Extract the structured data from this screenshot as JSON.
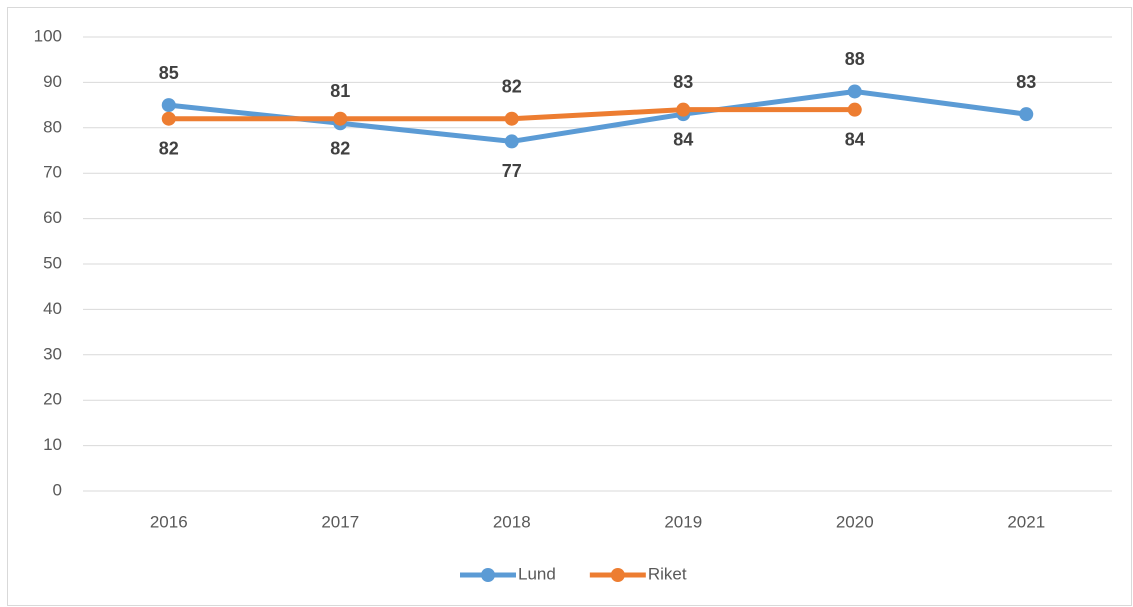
{
  "chart_data": {
    "type": "line",
    "categories": [
      "2016",
      "2017",
      "2018",
      "2019",
      "2020",
      "2021"
    ],
    "series": [
      {
        "name": "Lund",
        "color": "#5b9bd5",
        "values": [
          85,
          81,
          77,
          83,
          88,
          83
        ]
      },
      {
        "name": "Riket",
        "color": "#ed7d31",
        "values": [
          82,
          82,
          82,
          84,
          84,
          null
        ]
      }
    ],
    "ylim": [
      0,
      100
    ],
    "yticks": [
      0,
      10,
      20,
      30,
      40,
      50,
      60,
      70,
      80,
      90,
      100
    ],
    "grid": true,
    "legend": "bottom",
    "data_labels": true
  }
}
